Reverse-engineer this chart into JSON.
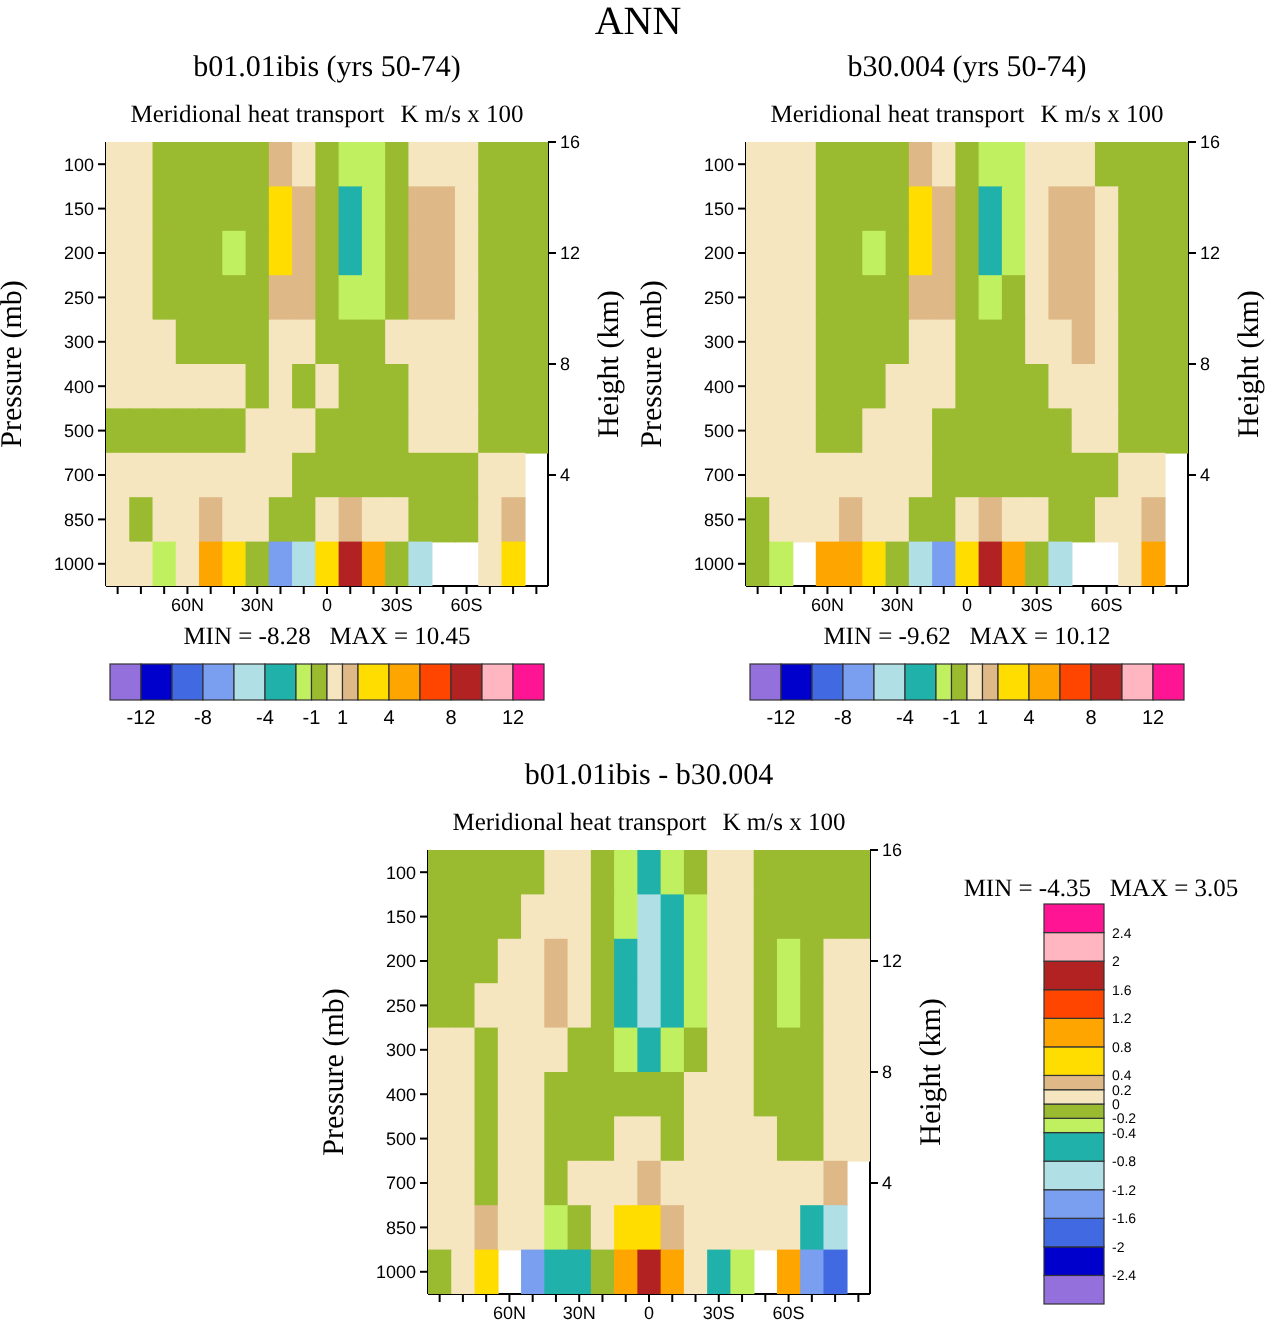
{
  "chart_data": [
    {
      "type": "heatmap",
      "title": "b01.01ibis (yrs 50-74)",
      "subtitle": "Meridional heat transport",
      "ylabel": "Pressure (mb)",
      "y2label": "Height (km)",
      "annotations": [
        "ANN",
        "K m/s x 100",
        "MIN = -8.28   MAX = 10.45"
      ],
      "categories": [
        null,
        null,
        null,
        "60N",
        null,
        null,
        "30N",
        null,
        null,
        "0",
        null,
        null,
        "30S",
        null,
        null,
        "60S",
        null,
        null,
        null
      ],
      "y_categories": [
        "100",
        "150",
        "200",
        "250",
        "300",
        "400",
        "500",
        "700",
        "850",
        "1000"
      ],
      "y2lim": [
        0,
        16
      ],
      "y2ticks": [
        4,
        8,
        12,
        16
      ],
      "colors": [
        "#9370db",
        "#0000cd",
        "#4169e1",
        "#7b9ff0",
        "#b0e0e6",
        "#20b2aa",
        "#c0f060",
        "#9aba30",
        "#f5e6c0",
        "#deb887",
        "#ffdd00",
        "#ffa500",
        "#ff4500",
        "#b22222",
        "#ffb6c1",
        "#ff1493"
      ],
      "clim": [
        -14,
        14
      ],
      "cticks": [
        -12,
        {
          "value": -10,
          "label": null
        },
        -8,
        {
          "value": -6,
          "label": null
        },
        -4,
        {
          "value": -2,
          "label": null
        },
        -1,
        {
          "value": 0,
          "label": null
        },
        1,
        {
          "value": 2,
          "label": null
        },
        4,
        {
          "value": 6,
          "label": null
        },
        8,
        {
          "value": 10,
          "label": null
        },
        12
      ],
      "cells": [
        [
          0.5,
          0.5,
          -0.5,
          -0.5,
          -0.5,
          -0.5,
          -0.5,
          1.5,
          0.5,
          -0.5,
          -1.5,
          -1.5,
          -0.5,
          0.5,
          0.5,
          0.5,
          -0.5,
          -0.5,
          -0.5
        ],
        [
          0.5,
          0.5,
          -0.5,
          -0.5,
          -0.5,
          -0.5,
          -0.5,
          3,
          1.5,
          -0.5,
          -3,
          -1.5,
          -0.5,
          1.5,
          1.5,
          0.5,
          -0.5,
          -0.5,
          -0.5
        ],
        [
          0.5,
          0.5,
          -0.5,
          -0.5,
          -0.5,
          -1.5,
          -0.5,
          3,
          1.5,
          -0.5,
          -3,
          -1.5,
          -0.5,
          1.5,
          1.5,
          0.5,
          -0.5,
          -0.5,
          -0.5
        ],
        [
          0.5,
          0.5,
          -0.5,
          -0.5,
          -0.5,
          -0.5,
          -0.5,
          1.5,
          1.5,
          -0.5,
          -1.5,
          -1.5,
          -0.5,
          1.5,
          1.5,
          0.5,
          -0.5,
          -0.5,
          -0.5
        ],
        [
          0.5,
          0.5,
          0.5,
          -0.5,
          -0.5,
          -0.5,
          -0.5,
          0.5,
          0.5,
          -0.5,
          -0.5,
          -0.5,
          0.5,
          0.5,
          0.5,
          0.5,
          -0.5,
          -0.5,
          -0.5
        ],
        [
          0.5,
          0.5,
          0.5,
          0.5,
          0.5,
          0.5,
          -0.5,
          0.5,
          -0.5,
          0.5,
          -0.5,
          -0.5,
          -0.5,
          0.5,
          0.5,
          0.5,
          -0.5,
          -0.5,
          -0.5
        ],
        [
          -0.5,
          -0.5,
          -0.5,
          -0.5,
          -0.5,
          -0.5,
          0.5,
          0.5,
          0.5,
          -0.5,
          -0.5,
          -0.5,
          -0.5,
          0.5,
          0.5,
          0.5,
          -0.5,
          -0.5,
          -0.5
        ],
        [
          0.5,
          0.5,
          0.5,
          0.5,
          0.5,
          0.5,
          0.5,
          0.5,
          -0.5,
          -0.5,
          -0.5,
          -0.5,
          -0.5,
          -0.5,
          -0.5,
          -0.5,
          0.5,
          0.5,
          null
        ],
        [
          0.5,
          -0.5,
          0.5,
          0.5,
          1.5,
          0.5,
          0.5,
          -0.5,
          -0.5,
          0.5,
          1.5,
          0.5,
          0.5,
          -0.5,
          -0.5,
          -0.5,
          0.5,
          1.5,
          null
        ],
        [
          0.5,
          0.5,
          -1.5,
          0.5,
          5,
          3,
          -0.5,
          -7,
          -5,
          3,
          9,
          5,
          -0.5,
          -5,
          null,
          null,
          0.5,
          3,
          null
        ]
      ]
    },
    {
      "type": "heatmap",
      "title": "b30.004 (yrs 50-74)",
      "subtitle": "Meridional heat transport",
      "ylabel": "Pressure (mb)",
      "y2label": "Height (km)",
      "annotations": [
        "K m/s x 100",
        "MIN = -9.62   MAX = 10.12"
      ],
      "categories": [
        null,
        null,
        null,
        "60N",
        null,
        null,
        "30N",
        null,
        null,
        "0",
        null,
        null,
        "30S",
        null,
        null,
        "60S",
        null,
        null,
        null
      ],
      "y_categories": [
        "100",
        "150",
        "200",
        "250",
        "300",
        "400",
        "500",
        "700",
        "850",
        "1000"
      ],
      "y2lim": [
        0,
        16
      ],
      "y2ticks": [
        4,
        8,
        12,
        16
      ],
      "colors": [
        "#9370db",
        "#0000cd",
        "#4169e1",
        "#7b9ff0",
        "#b0e0e6",
        "#20b2aa",
        "#c0f060",
        "#9aba30",
        "#f5e6c0",
        "#deb887",
        "#ffdd00",
        "#ffa500",
        "#ff4500",
        "#b22222",
        "#ffb6c1",
        "#ff1493"
      ],
      "clim": [
        -14,
        14
      ],
      "cticks": [
        -12,
        {
          "value": -10,
          "label": null
        },
        -8,
        {
          "value": -6,
          "label": null
        },
        -4,
        {
          "value": -2,
          "label": null
        },
        -1,
        {
          "value": 0,
          "label": null
        },
        1,
        {
          "value": 2,
          "label": null
        },
        4,
        {
          "value": 6,
          "label": null
        },
        8,
        {
          "value": 10,
          "label": null
        },
        12
      ],
      "cells": [
        [
          0.5,
          0.5,
          0.5,
          -0.5,
          -0.5,
          -0.5,
          -0.5,
          1.5,
          0.5,
          -0.5,
          -1.5,
          -1.5,
          0.5,
          0.5,
          0.5,
          -0.5,
          -0.5,
          -0.5,
          -0.5
        ],
        [
          0.5,
          0.5,
          0.5,
          -0.5,
          -0.5,
          -0.5,
          -0.5,
          3,
          1.5,
          -0.5,
          -3,
          -1.5,
          0.5,
          1.5,
          1.5,
          0.5,
          -0.5,
          -0.5,
          -0.5
        ],
        [
          0.5,
          0.5,
          0.5,
          -0.5,
          -0.5,
          -1.5,
          -0.5,
          3,
          1.5,
          -0.5,
          -3,
          -1.5,
          0.5,
          1.5,
          1.5,
          0.5,
          -0.5,
          -0.5,
          -0.5
        ],
        [
          0.5,
          0.5,
          0.5,
          -0.5,
          -0.5,
          -0.5,
          -0.5,
          1.5,
          1.5,
          -0.5,
          -1.5,
          -0.5,
          0.5,
          1.5,
          1.5,
          0.5,
          -0.5,
          -0.5,
          -0.5
        ],
        [
          0.5,
          0.5,
          0.5,
          -0.5,
          -0.5,
          -0.5,
          -0.5,
          0.5,
          0.5,
          -0.5,
          -0.5,
          -0.5,
          0.5,
          0.5,
          1.5,
          0.5,
          -0.5,
          -0.5,
          -0.5
        ],
        [
          0.5,
          0.5,
          0.5,
          -0.5,
          -0.5,
          -0.5,
          0.5,
          0.5,
          0.5,
          -0.5,
          -0.5,
          -0.5,
          -0.5,
          0.5,
          0.5,
          0.5,
          -0.5,
          -0.5,
          -0.5
        ],
        [
          0.5,
          0.5,
          0.5,
          -0.5,
          -0.5,
          0.5,
          0.5,
          0.5,
          -0.5,
          -0.5,
          -0.5,
          -0.5,
          -0.5,
          -0.5,
          0.5,
          0.5,
          -0.5,
          -0.5,
          -0.5
        ],
        [
          0.5,
          0.5,
          0.5,
          0.5,
          0.5,
          0.5,
          0.5,
          0.5,
          -0.5,
          -0.5,
          -0.5,
          -0.5,
          -0.5,
          -0.5,
          -0.5,
          -0.5,
          0.5,
          0.5,
          null
        ],
        [
          -0.5,
          0.5,
          0.5,
          0.5,
          1.5,
          0.5,
          0.5,
          -0.5,
          -0.5,
          0.5,
          1.5,
          0.5,
          0.5,
          -0.5,
          -0.5,
          0.5,
          0.5,
          1.5,
          null
        ],
        [
          -0.5,
          -1.5,
          null,
          5,
          5,
          3,
          -0.5,
          -5,
          -7,
          3,
          9,
          5,
          -0.5,
          -5,
          null,
          null,
          0.5,
          5,
          null
        ]
      ]
    },
    {
      "type": "heatmap",
      "title": "b01.01ibis - b30.004",
      "subtitle": "Meridional heat transport",
      "ylabel": "Pressure (mb)",
      "y2label": "Height (km)",
      "annotations": [
        "K m/s x 100",
        "MIN = -4.35   MAX = 3.05"
      ],
      "categories": [
        null,
        null,
        null,
        "60N",
        null,
        null,
        "30N",
        null,
        null,
        "0",
        null,
        null,
        "30S",
        null,
        null,
        "60S",
        null,
        null,
        null
      ],
      "y_categories": [
        "100",
        "150",
        "200",
        "250",
        "300",
        "400",
        "500",
        "700",
        "850",
        "1000"
      ],
      "y2lim": [
        0,
        16
      ],
      "y2ticks": [
        4,
        8,
        12,
        16
      ],
      "colors": [
        "#9370db",
        "#0000cd",
        "#4169e1",
        "#7b9ff0",
        "#b0e0e6",
        "#20b2aa",
        "#c0f060",
        "#9aba30",
        "#f5e6c0",
        "#deb887",
        "#ffdd00",
        "#ffa500",
        "#ff4500",
        "#b22222",
        "#ffb6c1",
        "#ff1493"
      ],
      "clim": [
        -2.8,
        2.8
      ],
      "cticks": [
        -2.4,
        -2,
        -1.6,
        -1.2,
        -0.8,
        -0.4,
        -0.2,
        0,
        0.2,
        0.4,
        0.8,
        1.2,
        1.6,
        2,
        2.4
      ],
      "cells": [
        [
          -0.1,
          -0.1,
          -0.1,
          -0.1,
          -0.1,
          0.1,
          0.1,
          -0.1,
          -0.3,
          -0.6,
          -0.3,
          -0.1,
          0.1,
          0.1,
          -0.1,
          -0.1,
          -0.1,
          -0.1,
          -0.1
        ],
        [
          -0.1,
          -0.1,
          -0.1,
          -0.1,
          0.1,
          0.1,
          0.1,
          -0.1,
          -0.3,
          -1,
          -0.6,
          -0.3,
          0.1,
          0.1,
          -0.1,
          -0.1,
          -0.1,
          -0.1,
          -0.1
        ],
        [
          -0.1,
          -0.1,
          -0.1,
          0.1,
          0.1,
          0.3,
          0.1,
          -0.1,
          -0.6,
          -1,
          -0.6,
          -0.3,
          0.1,
          0.1,
          -0.1,
          -0.3,
          -0.1,
          0.1,
          0.1
        ],
        [
          -0.1,
          -0.1,
          0.1,
          0.1,
          0.1,
          0.3,
          0.1,
          -0.1,
          -0.6,
          -1,
          -0.6,
          -0.3,
          0.1,
          0.1,
          -0.1,
          -0.3,
          -0.1,
          0.1,
          0.1
        ],
        [
          0.1,
          0.1,
          -0.1,
          0.1,
          0.1,
          0.1,
          -0.1,
          -0.1,
          -0.3,
          -0.6,
          -0.3,
          -0.1,
          0.1,
          0.1,
          -0.1,
          -0.1,
          -0.1,
          0.1,
          0.1
        ],
        [
          0.1,
          0.1,
          -0.1,
          0.1,
          0.1,
          -0.1,
          -0.1,
          -0.1,
          -0.1,
          -0.1,
          -0.1,
          0.1,
          0.1,
          0.1,
          -0.1,
          -0.1,
          -0.1,
          0.1,
          0.1
        ],
        [
          0.1,
          0.1,
          -0.1,
          0.1,
          0.1,
          -0.1,
          -0.1,
          -0.1,
          0.1,
          0.1,
          -0.1,
          0.1,
          0.1,
          0.1,
          0.1,
          -0.1,
          -0.1,
          0.1,
          0.1
        ],
        [
          0.1,
          0.1,
          -0.1,
          0.1,
          0.1,
          -0.1,
          0.1,
          0.1,
          0.1,
          0.3,
          0.1,
          0.1,
          0.1,
          0.1,
          0.1,
          0.1,
          0.1,
          0.3,
          null
        ],
        [
          0.1,
          0.1,
          0.3,
          0.1,
          0.1,
          -0.3,
          -0.1,
          0.1,
          0.6,
          0.6,
          0.3,
          0.1,
          0.1,
          0.1,
          0.1,
          0.1,
          -0.6,
          -1,
          null
        ],
        [
          -0.1,
          0.1,
          0.6,
          null,
          -1.4,
          -0.6,
          -0.6,
          -0.1,
          1,
          1.8,
          1,
          0.1,
          -0.6,
          -0.3,
          null,
          1,
          -1.4,
          -1.8,
          null
        ]
      ]
    }
  ]
}
